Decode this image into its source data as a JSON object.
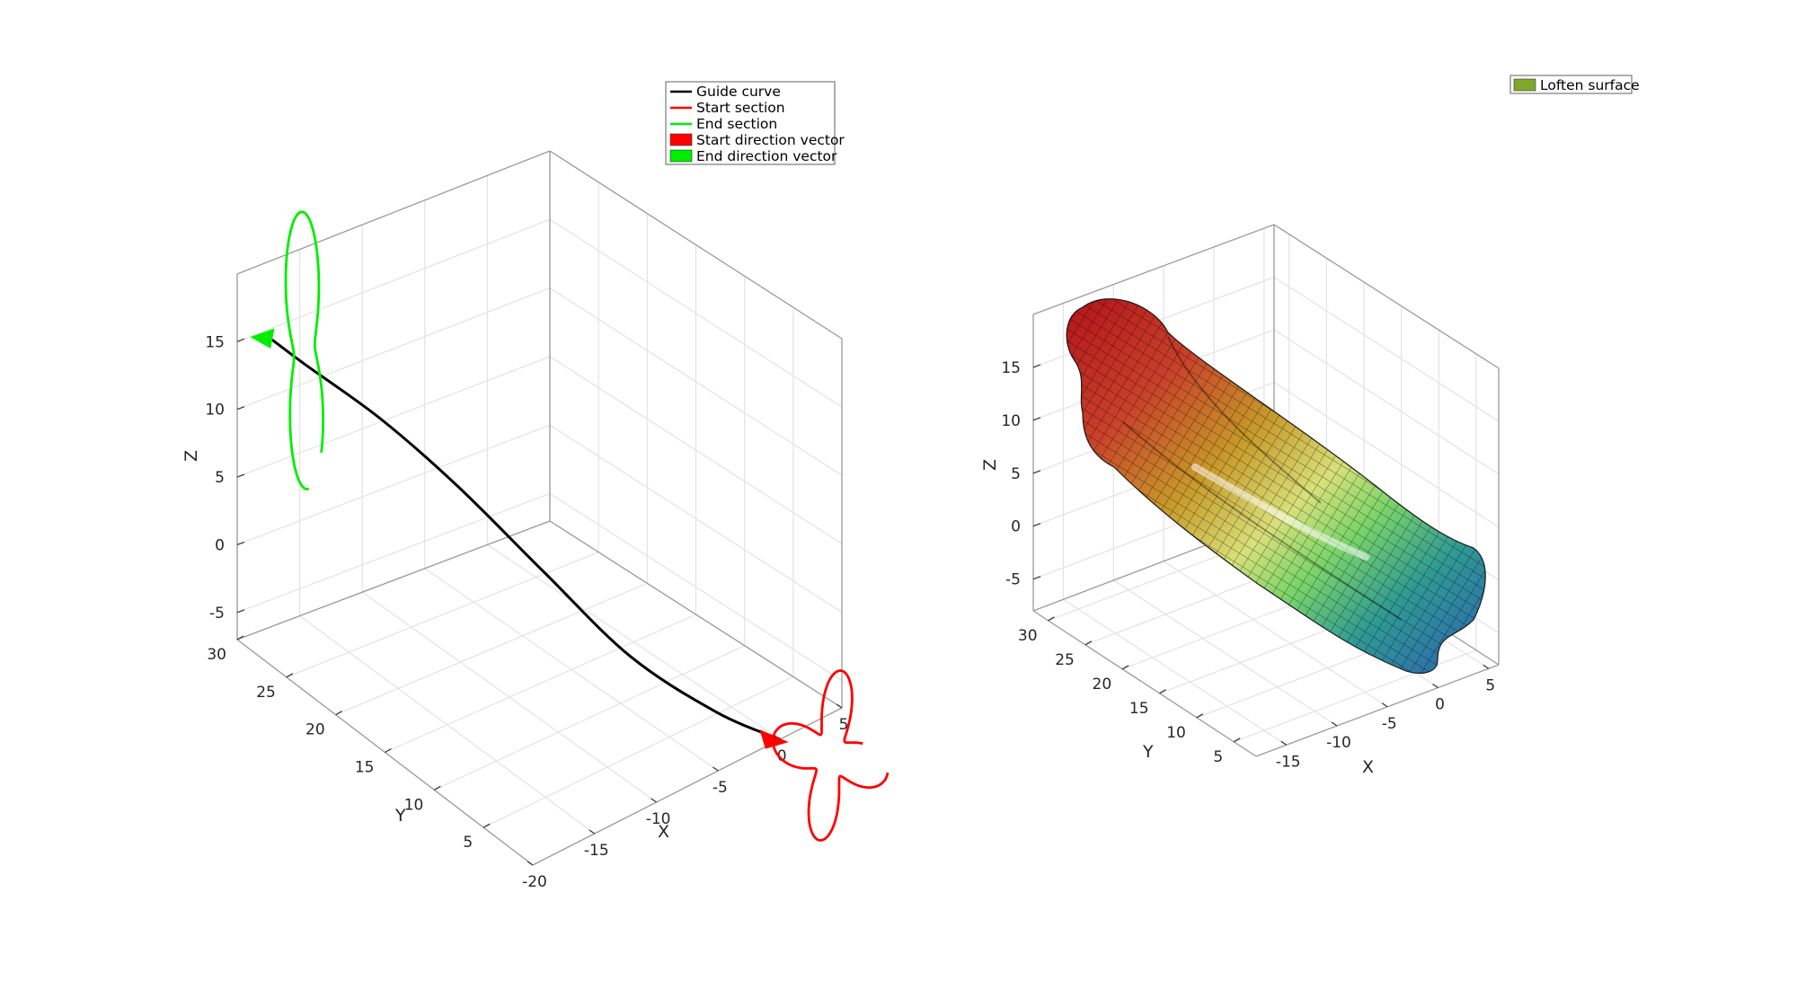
{
  "chart_data": [
    {
      "type": "line3d",
      "xlabel": "X",
      "ylabel": "Y",
      "zlabel": "Z",
      "xticks": [
        -20,
        -15,
        -10,
        -5,
        0,
        5
      ],
      "yticks": [
        5,
        10,
        15,
        20,
        25,
        30
      ],
      "zticks": [
        -5,
        0,
        5,
        10,
        15
      ],
      "xlim": [
        -20,
        5
      ],
      "ylim": [
        0,
        30
      ],
      "zlim": [
        -7,
        20
      ],
      "grid": true,
      "legend_position": "top-right",
      "legend": [
        {
          "label": "Guide curve",
          "color": "#000000",
          "marker": "line"
        },
        {
          "label": "Start section",
          "color": "#ff0000",
          "marker": "line"
        },
        {
          "label": "End section",
          "color": "#00ee00",
          "marker": "line"
        },
        {
          "label": "Start direction vector",
          "color": "#ff0000",
          "marker": "patch"
        },
        {
          "label": "End direction vector",
          "color": "#00ee00",
          "marker": "patch"
        }
      ],
      "series": [
        {
          "name": "Guide curve",
          "color": "#000000",
          "points": [
            [
              0,
              0,
              -7
            ],
            [
              -2,
              4,
              -6
            ],
            [
              -5,
              9,
              -3
            ],
            [
              -8,
              14,
              2
            ],
            [
              -11,
              19,
              7
            ],
            [
              -14,
              23,
              11
            ],
            [
              -17,
              27,
              14
            ],
            [
              -18,
              29,
              15
            ]
          ]
        },
        {
          "name": "Start section",
          "color": "#ff0000",
          "center": [
            0,
            0,
            -7
          ]
        },
        {
          "name": "End section",
          "color": "#00ee00",
          "center": [
            -18,
            29,
            15
          ]
        }
      ]
    },
    {
      "type": "surface3d",
      "xlabel": "X",
      "ylabel": "Y",
      "zlabel": "Z",
      "xticks": [
        -15,
        -10,
        -5,
        0,
        5
      ],
      "yticks": [
        5,
        10,
        15,
        20,
        25,
        30
      ],
      "zticks": [
        -5,
        0,
        5,
        10,
        15
      ],
      "xlim": [
        -18,
        6
      ],
      "ylim": [
        2,
        32
      ],
      "zlim": [
        -8,
        20
      ],
      "grid": true,
      "colormap": "gjet",
      "legend_position": "top-right",
      "legend": [
        {
          "label": "Loften surface",
          "color": "#7fa82a",
          "marker": "patch"
        }
      ]
    }
  ]
}
